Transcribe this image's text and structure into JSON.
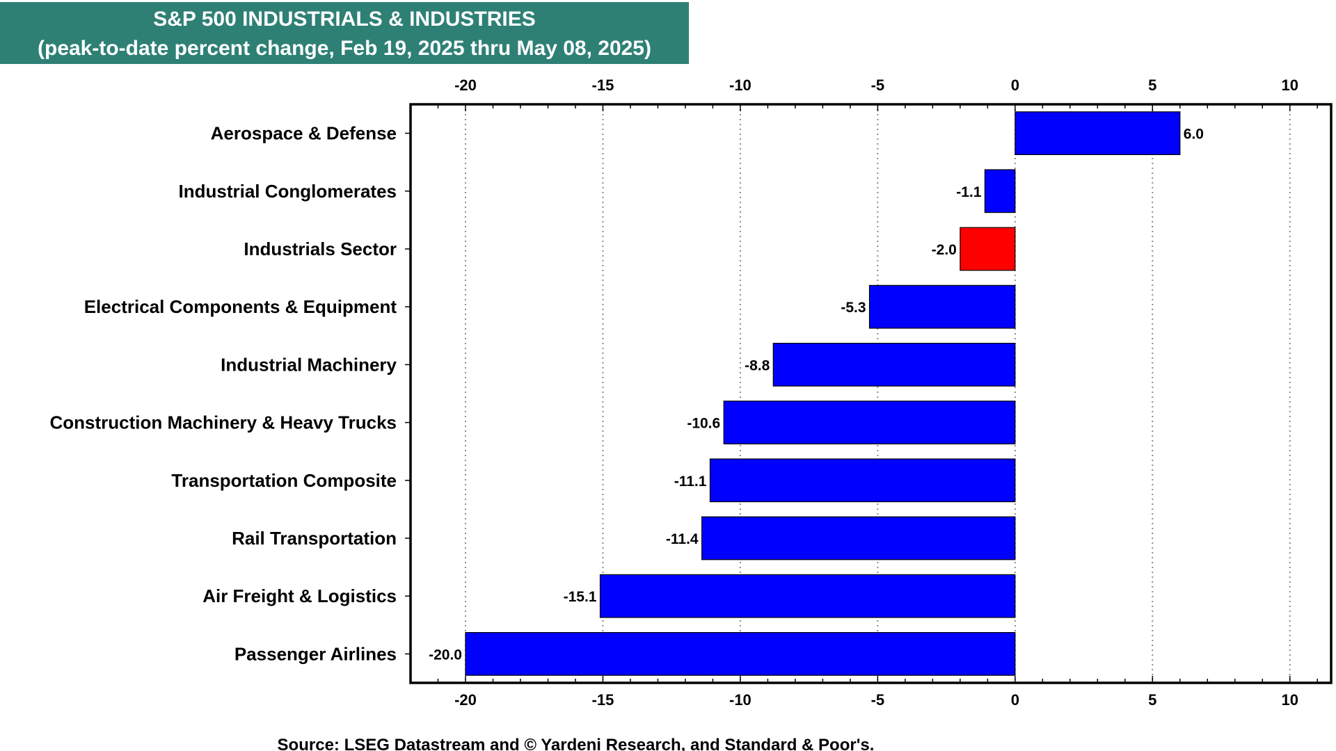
{
  "chart_data": {
    "type": "bar",
    "orientation": "horizontal",
    "title": "S&P 500 INDUSTRIALS & INDUSTRIES",
    "subtitle": "(peak-to-date percent change, Feb 19, 2025 thru May 08, 2025)",
    "xlabel": "",
    "ylabel": "",
    "xlim": [
      -22,
      11.5
    ],
    "xticks": [
      -20,
      -15,
      -10,
      -5,
      0,
      5,
      10
    ],
    "tick_labels": [
      "-20",
      "-15",
      "-10",
      "-5",
      "0",
      "5",
      "10"
    ],
    "grid": true,
    "legend": "none",
    "categories": [
      "Aerospace & Defense",
      "Industrial Conglomerates",
      "Industrials Sector",
      "Electrical Components & Equipment",
      "Industrial Machinery",
      "Construction Machinery & Heavy Trucks",
      "Transportation Composite",
      "Rail Transportation",
      "Air Freight & Logistics",
      "Passenger Airlines"
    ],
    "values": [
      6.0,
      -1.1,
      -2.0,
      -5.3,
      -8.8,
      -10.6,
      -11.1,
      -11.4,
      -15.1,
      -20.0
    ],
    "value_labels": [
      "6.0",
      "-1.1",
      "-2.0",
      "-5.3",
      "-8.8",
      "-10.6",
      "-11.1",
      "-11.4",
      "-15.1",
      "-20.0"
    ],
    "highlight_index": 2,
    "colors": {
      "bar": "#0000ff",
      "highlight": "#ff0000",
      "title_bg": "#2e8075"
    }
  },
  "header": {
    "line1": "S&P 500 INDUSTRIALS & INDUSTRIES",
    "line2": "(peak-to-date percent change, Feb 19, 2025 thru May 08, 2025)"
  },
  "footer": {
    "source": "Source: LSEG Datastream and © Yardeni Research, and Standard & Poor's."
  }
}
